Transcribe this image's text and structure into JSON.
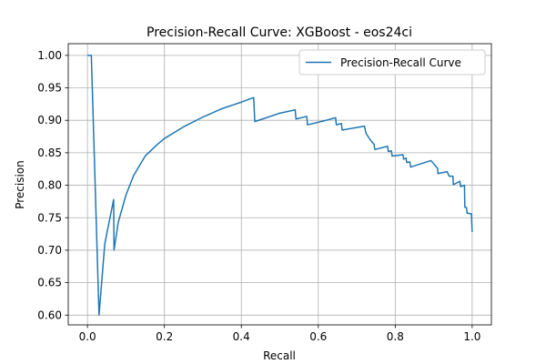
{
  "chart_data": {
    "type": "line",
    "title": "Precision-Recall Curve: XGBoost - eos24ci",
    "xlabel": "Recall",
    "ylabel": "Precision",
    "xlim": [
      -0.05,
      1.05
    ],
    "ylim": [
      0.585,
      1.018
    ],
    "xticks": [
      "0.0",
      "0.2",
      "0.4",
      "0.6",
      "0.8",
      "1.0"
    ],
    "yticks": [
      "0.60",
      "0.65",
      "0.70",
      "0.75",
      "0.80",
      "0.85",
      "0.90",
      "0.95",
      "1.00"
    ],
    "grid": true,
    "legend_position": "top-right",
    "line_color": "#1f77b4",
    "series": [
      {
        "name": "Precision-Recall Curve",
        "points": [
          [
            0.0,
            1.0
          ],
          [
            0.01,
            1.0
          ],
          [
            0.03,
            0.6
          ],
          [
            0.045,
            0.71
          ],
          [
            0.068,
            0.778
          ],
          [
            0.069,
            0.7
          ],
          [
            0.08,
            0.743
          ],
          [
            0.1,
            0.785
          ],
          [
            0.12,
            0.815
          ],
          [
            0.15,
            0.845
          ],
          [
            0.18,
            0.862
          ],
          [
            0.2,
            0.872
          ],
          [
            0.25,
            0.89
          ],
          [
            0.3,
            0.905
          ],
          [
            0.35,
            0.918
          ],
          [
            0.4,
            0.928
          ],
          [
            0.432,
            0.935
          ],
          [
            0.435,
            0.898
          ],
          [
            0.5,
            0.911
          ],
          [
            0.54,
            0.916
          ],
          [
            0.542,
            0.902
          ],
          [
            0.57,
            0.906
          ],
          [
            0.572,
            0.893
          ],
          [
            0.62,
            0.9
          ],
          [
            0.645,
            0.904
          ],
          [
            0.647,
            0.893
          ],
          [
            0.66,
            0.895
          ],
          [
            0.662,
            0.885
          ],
          [
            0.71,
            0.89
          ],
          [
            0.72,
            0.891
          ],
          [
            0.724,
            0.88
          ],
          [
            0.735,
            0.87
          ],
          [
            0.745,
            0.863
          ],
          [
            0.747,
            0.855
          ],
          [
            0.78,
            0.86
          ],
          [
            0.782,
            0.852
          ],
          [
            0.79,
            0.853
          ],
          [
            0.792,
            0.845
          ],
          [
            0.82,
            0.847
          ],
          [
            0.822,
            0.84
          ],
          [
            0.828,
            0.842
          ],
          [
            0.83,
            0.835
          ],
          [
            0.838,
            0.836
          ],
          [
            0.84,
            0.828
          ],
          [
            0.893,
            0.838
          ],
          [
            0.91,
            0.826
          ],
          [
            0.911,
            0.818
          ],
          [
            0.935,
            0.821
          ],
          [
            0.94,
            0.814
          ],
          [
            0.95,
            0.814
          ],
          [
            0.951,
            0.801
          ],
          [
            0.968,
            0.806
          ],
          [
            0.97,
            0.798
          ],
          [
            0.98,
            0.8
          ],
          [
            0.981,
            0.766
          ],
          [
            0.985,
            0.766
          ],
          [
            0.987,
            0.757
          ],
          [
            0.998,
            0.756
          ],
          [
            1.0,
            0.728
          ]
        ]
      }
    ]
  }
}
